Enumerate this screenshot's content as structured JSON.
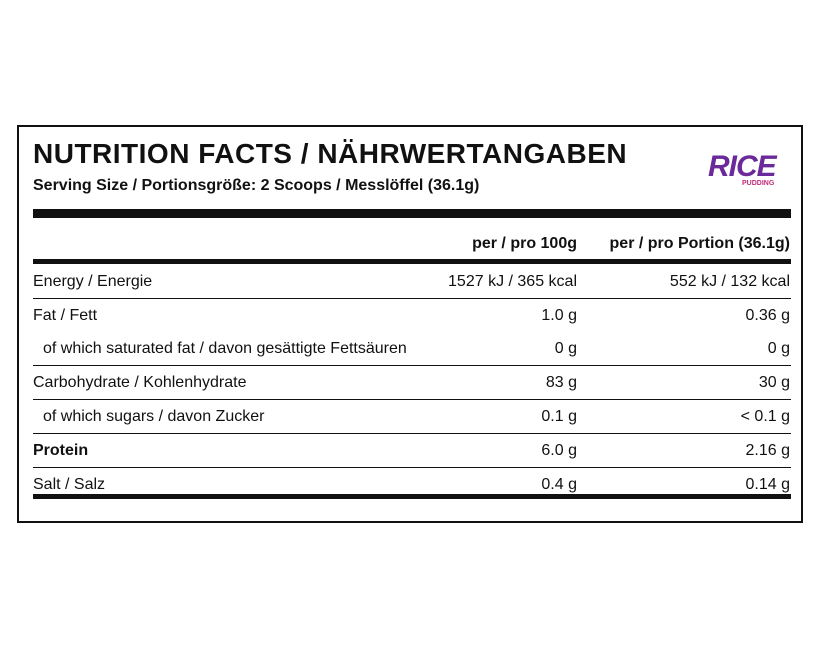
{
  "title": "NUTRITION FACTS / NÄHRWERTANGABEN",
  "serving_size": "Serving Size / Portionsgröße: 2 Scoops / Messlöffel (36.1g)",
  "logo": {
    "text": "RICE",
    "subtext": "PUDDING"
  },
  "table": {
    "columns": [
      "per / pro 100g",
      "per / pro Portion (36.1g)"
    ],
    "rows": [
      [
        "Energy / Energie",
        "1527 kJ / 365 kcal",
        "552 kJ / 132 kcal"
      ],
      [
        "Fat / Fett",
        "1.0 g",
        "0.36 g"
      ],
      [
        "of which saturated fat / davon gesättigte Fettsäuren",
        "0 g",
        "0 g"
      ],
      [
        "Carbohydrate / Kohlenhydrate",
        "83 g",
        "30 g"
      ],
      [
        "of which sugars / davon Zucker",
        "0.1 g",
        "< 0.1 g"
      ],
      [
        "Protein",
        "6.0 g",
        "2.16 g"
      ],
      [
        "Salt / Salz",
        "0.4 g",
        "0.14 g"
      ]
    ]
  }
}
